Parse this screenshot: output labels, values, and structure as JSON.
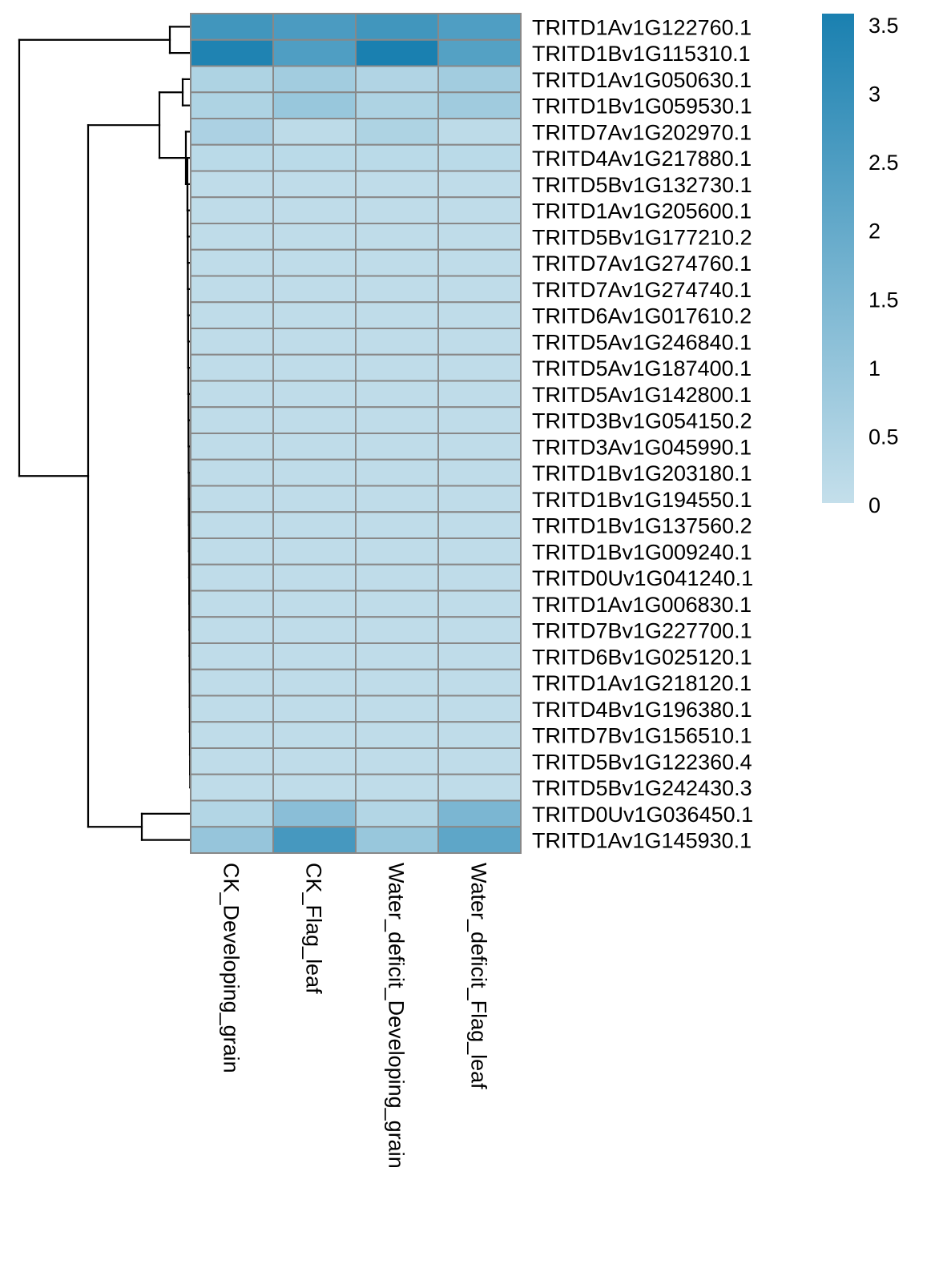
{
  "chart_data": {
    "type": "heatmap",
    "title": "",
    "columns": [
      "CK_Developing_grain",
      "CK_Flag_leaf",
      "Water_deficit_Developing_grain",
      "Water_deficit_Flag_leaf"
    ],
    "rows": [
      {
        "label": "TRITD1Av1G122760.1",
        "values": [
          2.7,
          2.5,
          2.7,
          2.4
        ]
      },
      {
        "label": "TRITD1Bv1G115310.1",
        "values": [
          3.4,
          2.4,
          3.5,
          2.3
        ]
      },
      {
        "label": "TRITD1Av1G050630.1",
        "values": [
          0.45,
          0.7,
          0.4,
          0.7
        ]
      },
      {
        "label": "TRITD1Bv1G059530.1",
        "values": [
          0.45,
          0.9,
          0.45,
          0.75
        ]
      },
      {
        "label": "TRITD7Av1G202970.1",
        "values": [
          0.5,
          0.15,
          0.45,
          0.15
        ]
      },
      {
        "label": "TRITD4Av1G217880.1",
        "values": [
          0.2,
          0.2,
          0.2,
          0.2
        ]
      },
      {
        "label": "TRITD5Bv1G132730.1",
        "values": [
          0.1,
          0.1,
          0.1,
          0.1
        ]
      },
      {
        "label": "TRITD1Av1G205600.1",
        "values": [
          0.1,
          0.1,
          0.1,
          0.1
        ]
      },
      {
        "label": "TRITD5Bv1G177210.2",
        "values": [
          0.1,
          0.1,
          0.1,
          0.1
        ]
      },
      {
        "label": "TRITD7Av1G274760.1",
        "values": [
          0.1,
          0.1,
          0.1,
          0.1
        ]
      },
      {
        "label": "TRITD7Av1G274740.1",
        "values": [
          0.1,
          0.1,
          0.1,
          0.1
        ]
      },
      {
        "label": "TRITD6Av1G017610.2",
        "values": [
          0.1,
          0.1,
          0.1,
          0.1
        ]
      },
      {
        "label": "TRITD5Av1G246840.1",
        "values": [
          0.1,
          0.1,
          0.1,
          0.1
        ]
      },
      {
        "label": "TRITD5Av1G187400.1",
        "values": [
          0.1,
          0.1,
          0.1,
          0.1
        ]
      },
      {
        "label": "TRITD5Av1G142800.1",
        "values": [
          0.1,
          0.1,
          0.1,
          0.1
        ]
      },
      {
        "label": "TRITD3Bv1G054150.2",
        "values": [
          0.1,
          0.1,
          0.1,
          0.1
        ]
      },
      {
        "label": "TRITD3Av1G045990.1",
        "values": [
          0.1,
          0.1,
          0.1,
          0.1
        ]
      },
      {
        "label": "TRITD1Bv1G203180.1",
        "values": [
          0.1,
          0.1,
          0.1,
          0.1
        ]
      },
      {
        "label": "TRITD1Bv1G194550.1",
        "values": [
          0.1,
          0.1,
          0.1,
          0.1
        ]
      },
      {
        "label": "TRITD1Bv1G137560.2",
        "values": [
          0.1,
          0.1,
          0.1,
          0.1
        ]
      },
      {
        "label": "TRITD1Bv1G009240.1",
        "values": [
          0.1,
          0.1,
          0.1,
          0.1
        ]
      },
      {
        "label": "TRITD0Uv1G041240.1",
        "values": [
          0.1,
          0.1,
          0.1,
          0.1
        ]
      },
      {
        "label": "TRITD1Av1G006830.1",
        "values": [
          0.1,
          0.1,
          0.1,
          0.1
        ]
      },
      {
        "label": "TRITD7Bv1G227700.1",
        "values": [
          0.1,
          0.1,
          0.1,
          0.1
        ]
      },
      {
        "label": "TRITD6Bv1G025120.1",
        "values": [
          0.1,
          0.1,
          0.1,
          0.1
        ]
      },
      {
        "label": "TRITD1Av1G218120.1",
        "values": [
          0.1,
          0.1,
          0.1,
          0.1
        ]
      },
      {
        "label": "TRITD4Bv1G196380.1",
        "values": [
          0.1,
          0.1,
          0.1,
          0.1
        ]
      },
      {
        "label": "TRITD7Bv1G156510.1",
        "values": [
          0.1,
          0.1,
          0.1,
          0.1
        ]
      },
      {
        "label": "TRITD5Bv1G122360.4",
        "values": [
          0.1,
          0.1,
          0.1,
          0.1
        ]
      },
      {
        "label": "TRITD5Bv1G242430.3",
        "values": [
          0.1,
          0.1,
          0.1,
          0.1
        ]
      },
      {
        "label": "TRITD0Uv1G036450.1",
        "values": [
          0.35,
          1.2,
          0.35,
          1.5
        ]
      },
      {
        "label": "TRITD1Av1G145930.1",
        "values": [
          0.95,
          2.6,
          0.9,
          2.1
        ]
      }
    ],
    "colorbar": {
      "range": [
        0,
        3.5
      ],
      "ticks": [
        0,
        0.5,
        1,
        1.5,
        2,
        2.5,
        3,
        3.5
      ],
      "tick_labels": [
        "0",
        "0.5",
        "1",
        "1.5",
        "2",
        "2.5",
        "3",
        "3.5"
      ],
      "color_low": "#c4dfeb",
      "color_high": "#1a80b0"
    },
    "row_dendrogram": {
      "merges": [
        {
          "a": 0,
          "b": 1,
          "height": 0.12
        },
        {
          "a": 2,
          "b": 3,
          "height": 0.07
        },
        {
          "a": "chain",
          "b": 4,
          "height": 0.04
        },
        {
          "a": "g23",
          "b": "g4chain",
          "height": 0.15
        },
        {
          "a": 30,
          "b": 31,
          "height": 0.3
        },
        {
          "a": "mid",
          "b": "bot",
          "height": 0.6
        },
        {
          "a": "top",
          "b": "rest",
          "height": 1.0
        }
      ]
    },
    "cell_border_color": "#888888"
  }
}
